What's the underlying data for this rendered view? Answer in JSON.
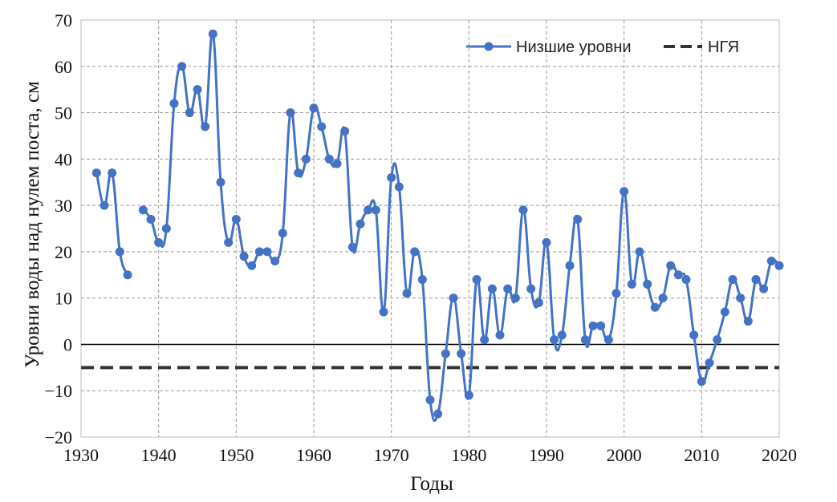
{
  "chart_data": {
    "type": "line",
    "xlabel": "Годы",
    "ylabel": "Уровни воды над нулем поста, см",
    "xlim": [
      1930,
      2020
    ],
    "ylim": [
      -20,
      70
    ],
    "x_ticks": [
      1930,
      1940,
      1950,
      1960,
      1970,
      1980,
      1990,
      2000,
      2010,
      2020
    ],
    "y_ticks": [
      -20,
      -10,
      0,
      10,
      20,
      30,
      40,
      50,
      60,
      70
    ],
    "x_tick_labels": [
      "1930",
      "1940",
      "1950",
      "1960",
      "1970",
      "1980",
      "1990",
      "2000",
      "2010",
      "2020"
    ],
    "y_tick_labels": [
      "−20",
      "−10",
      "0",
      "10",
      "20",
      "30",
      "40",
      "50",
      "60",
      "70"
    ],
    "grid": "dashed",
    "legend_position": "top-right",
    "series": [
      {
        "name": "Низшие уровни",
        "color": "#4472C4",
        "style": "solid-with-markers",
        "x": [
          1932,
          1933,
          1934,
          1935,
          1936,
          1938,
          1939,
          1940,
          1941,
          1942,
          1943,
          1944,
          1945,
          1946,
          1947,
          1948,
          1949,
          1950,
          1951,
          1952,
          1953,
          1954,
          1955,
          1956,
          1957,
          1958,
          1959,
          1960,
          1961,
          1962,
          1963,
          1964,
          1965,
          1966,
          1967,
          1968,
          1969,
          1970,
          1971,
          1972,
          1973,
          1974,
          1975,
          1976,
          1977,
          1978,
          1979,
          1980,
          1981,
          1982,
          1983,
          1984,
          1985,
          1986,
          1987,
          1988,
          1989,
          1990,
          1991,
          1992,
          1993,
          1994,
          1995,
          1996,
          1997,
          1998,
          1999,
          2000,
          2001,
          2002,
          2003,
          2004,
          2005,
          2006,
          2007,
          2008,
          2009,
          2010,
          2011,
          2012,
          2013,
          2014,
          2015,
          2016,
          2017,
          2018,
          2019,
          2020
        ],
        "y": [
          37,
          30,
          37,
          20,
          15,
          29,
          27,
          22,
          25,
          52,
          60,
          50,
          55,
          47,
          67,
          35,
          22,
          27,
          19,
          17,
          20,
          20,
          18,
          24,
          50,
          37,
          40,
          51,
          47,
          40,
          39,
          46,
          21,
          26,
          29,
          29,
          7,
          36,
          34,
          11,
          20,
          14,
          -12,
          -15,
          -2,
          10,
          -2,
          -11,
          14,
          1,
          12,
          2,
          12,
          10,
          29,
          12,
          9,
          22,
          1,
          2,
          17,
          27,
          1,
          4,
          4,
          1,
          11,
          33,
          13,
          20,
          13,
          8,
          10,
          17,
          15,
          14,
          2,
          -8,
          -4,
          1,
          7,
          14,
          10,
          5,
          14,
          12,
          18,
          17
        ],
        "segments": [
          [
            0,
            4
          ],
          [
            5,
            87
          ]
        ]
      },
      {
        "name": "НГЯ",
        "color": "#333333",
        "style": "dashed",
        "x": [
          1930,
          2020
        ],
        "y": [
          -5,
          -5
        ]
      }
    ]
  }
}
